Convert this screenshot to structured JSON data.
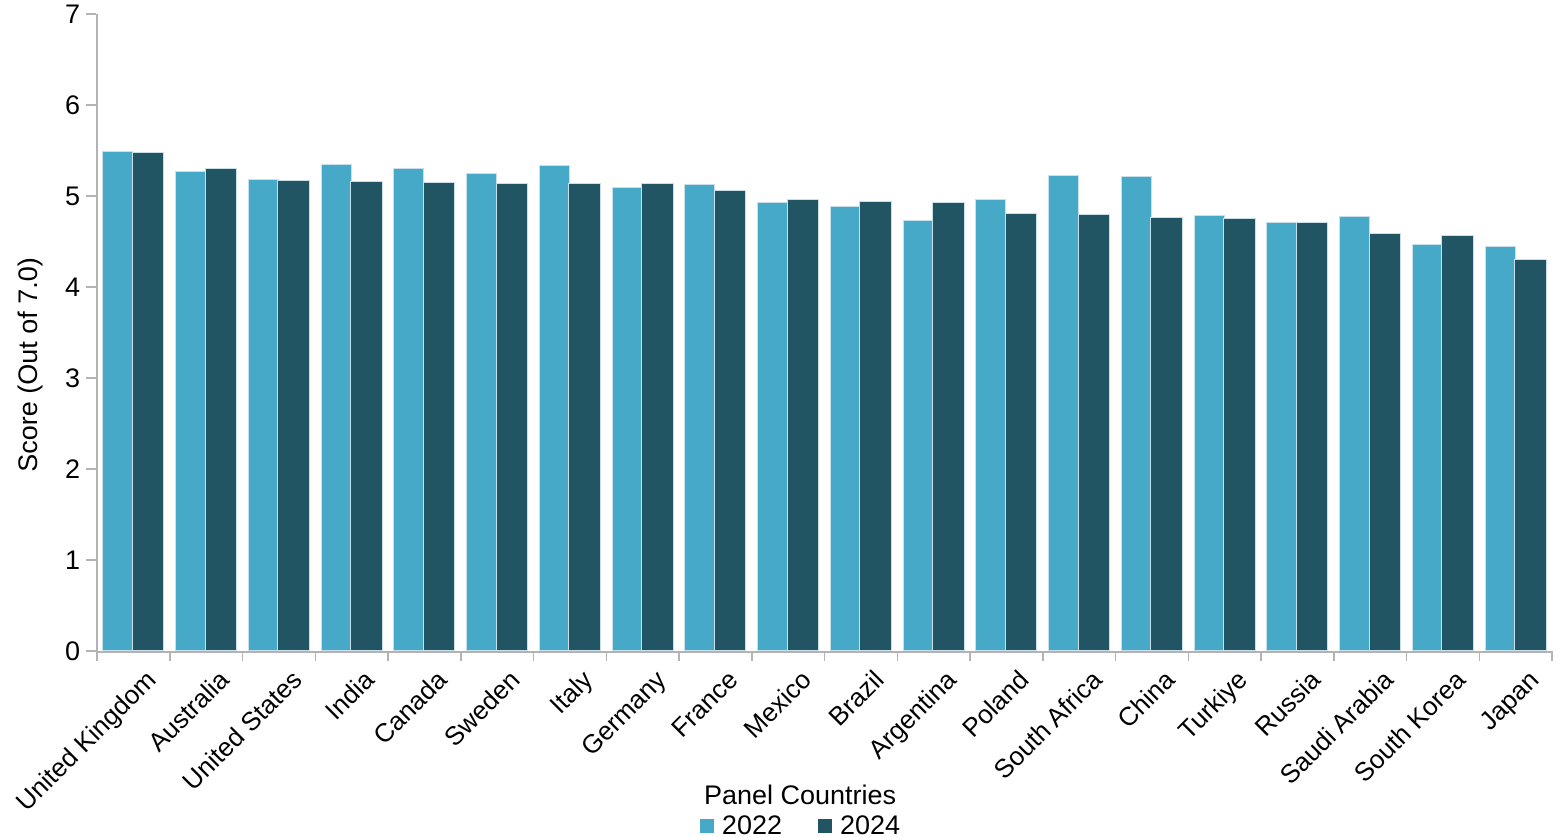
{
  "chart_data": {
    "type": "bar",
    "title": "",
    "xlabel": "Panel Countries",
    "ylabel": "Score (Out of 7.0)",
    "ylim": [
      0,
      7
    ],
    "yticks": [
      0,
      1,
      2,
      3,
      4,
      5,
      6,
      7
    ],
    "grid": false,
    "legend_position": "bottom",
    "categories": [
      "United Kingdom",
      "Australia",
      "United States",
      "India",
      "Canada",
      "Sweden",
      "Italy",
      "Germany",
      "France",
      "Mexico",
      "Brazil",
      "Argentina",
      "Poland",
      "South Africa",
      "China",
      "Turkiye",
      "Russia",
      "Saudi Arabia",
      "South Korea",
      "Japan"
    ],
    "series": [
      {
        "name": "2022",
        "color": "#46A9C7",
        "values": [
          5.49,
          5.28,
          5.19,
          5.35,
          5.31,
          5.25,
          5.34,
          5.1,
          5.13,
          4.93,
          4.89,
          4.74,
          4.97,
          5.23,
          5.22,
          4.79,
          4.71,
          4.78,
          4.47,
          4.45
        ]
      },
      {
        "name": "2024",
        "color": "#215564",
        "values": [
          5.48,
          5.31,
          5.18,
          5.16,
          5.15,
          5.14,
          5.14,
          5.14,
          5.07,
          4.97,
          4.95,
          4.93,
          4.81,
          4.8,
          4.77,
          4.76,
          4.71,
          4.59,
          4.57,
          4.31
        ]
      }
    ]
  },
  "colors": {
    "background": "#FFFFFF",
    "axis": "#B3B3B3",
    "bar_border": "#C9E0EB",
    "text": "#000000",
    "series_2022": "#46A9C7",
    "series_2024": "#215564"
  }
}
